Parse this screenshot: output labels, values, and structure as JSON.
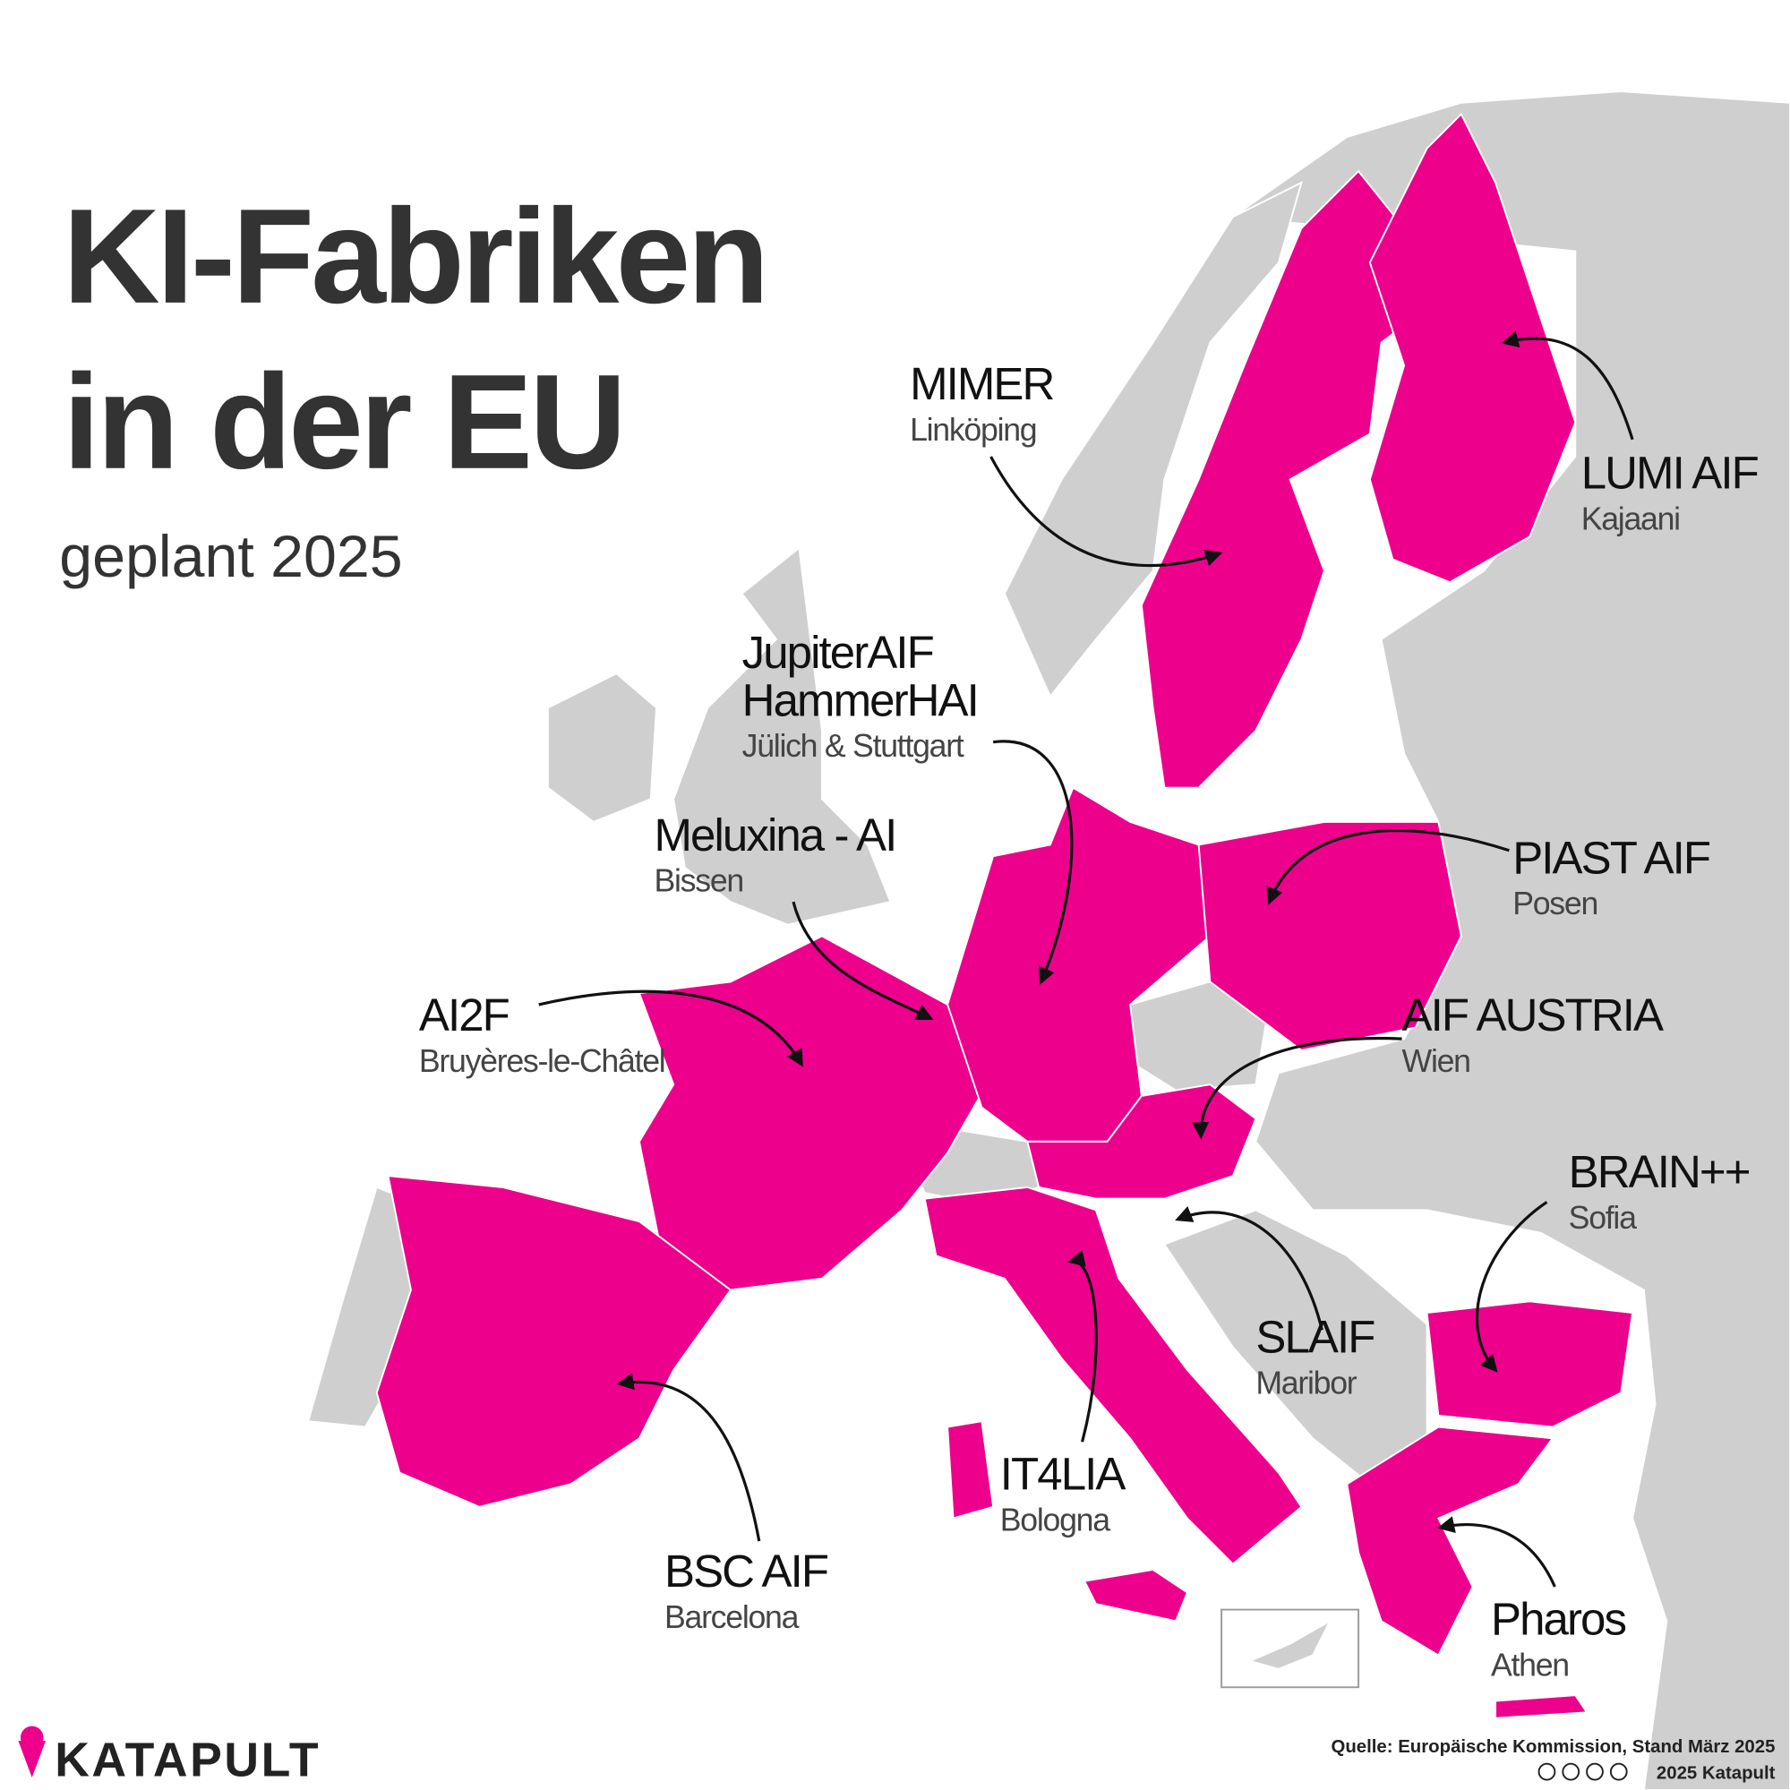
{
  "title_lines": [
    "KI-Fabriken",
    "in der EU"
  ],
  "subtitle": "geplant 2025",
  "labels": [
    {
      "names": [
        "MIMER"
      ],
      "city": "Linköping"
    },
    {
      "names": [
        "LUMI AIF"
      ],
      "city": "Kajaani"
    },
    {
      "names": [
        "JupiterAIF",
        "HammerHAI"
      ],
      "city": "Jülich & Stuttgart"
    },
    {
      "names": [
        "Meluxina - AI"
      ],
      "city": "Bissen"
    },
    {
      "names": [
        "PIAST AIF"
      ],
      "city": "Posen"
    },
    {
      "names": [
        "AIF AUSTRIA"
      ],
      "city": "Wien"
    },
    {
      "names": [
        "AI2F"
      ],
      "city": "Bruyères-le-Châtel"
    },
    {
      "names": [
        "BRAIN++"
      ],
      "city": "Sofia"
    },
    {
      "names": [
        "SLAIF"
      ],
      "city": "Maribor"
    },
    {
      "names": [
        "IT4LIA"
      ],
      "city": "Bologna"
    },
    {
      "names": [
        "BSC AIF"
      ],
      "city": "Barcelona"
    },
    {
      "names": [
        "Pharos"
      ],
      "city": "Athen"
    }
  ],
  "footer": {
    "logo": "KATAPULT",
    "source": "Quelle: Europäische Kommission, Stand März 2025",
    "copyright": "2025 Katapult"
  }
}
